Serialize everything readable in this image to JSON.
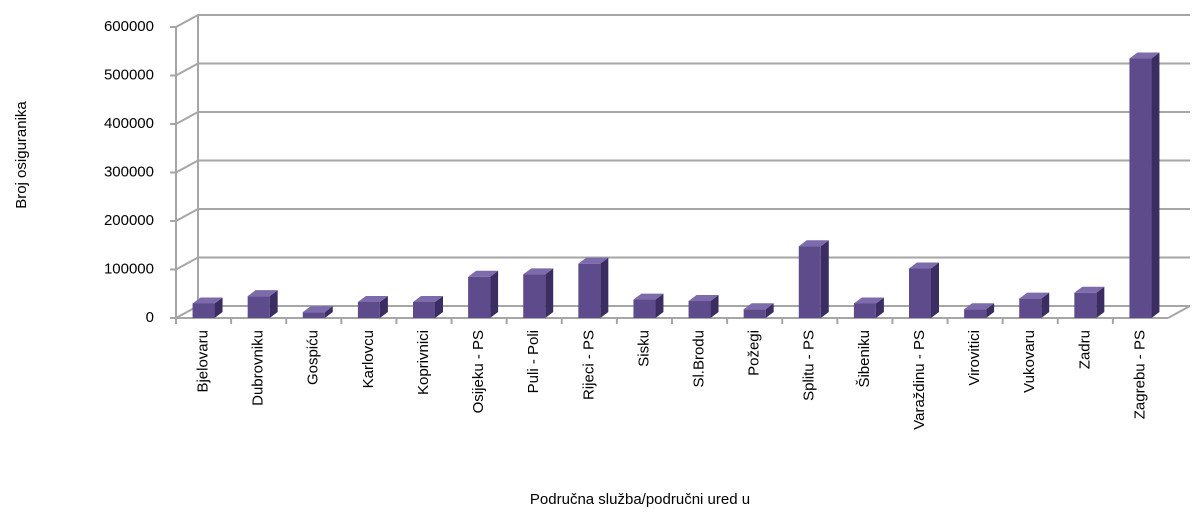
{
  "chart_data": {
    "type": "bar",
    "x_label": "Područna služba/područni ured u",
    "y_label": "Broj osiguranika",
    "categories": [
      "Bjelovaru",
      "Dubrovniku",
      "Gospiću",
      "Karlovcu",
      "Koprivnici",
      "Osijeku - PS",
      "Puli - Poli",
      "Rijeci - PS",
      "Sisku",
      "Sl.Brodu",
      "Požegi",
      "Splitu - PS",
      "Šibeniku",
      "Varaždinu - PS",
      "Virovitici",
      "Vukovaru",
      "Zadru",
      "Zagrebu - PS"
    ],
    "values": [
      30000,
      45000,
      12000,
      33000,
      33000,
      85000,
      90000,
      112000,
      38000,
      35000,
      18000,
      148000,
      30000,
      102000,
      18000,
      40000,
      52000,
      535000
    ],
    "color": "#5e4b8b",
    "ylim": [
      0,
      600000
    ],
    "yticks": [
      0,
      100000,
      200000,
      300000,
      400000,
      500000,
      600000
    ],
    "grid": true
  }
}
